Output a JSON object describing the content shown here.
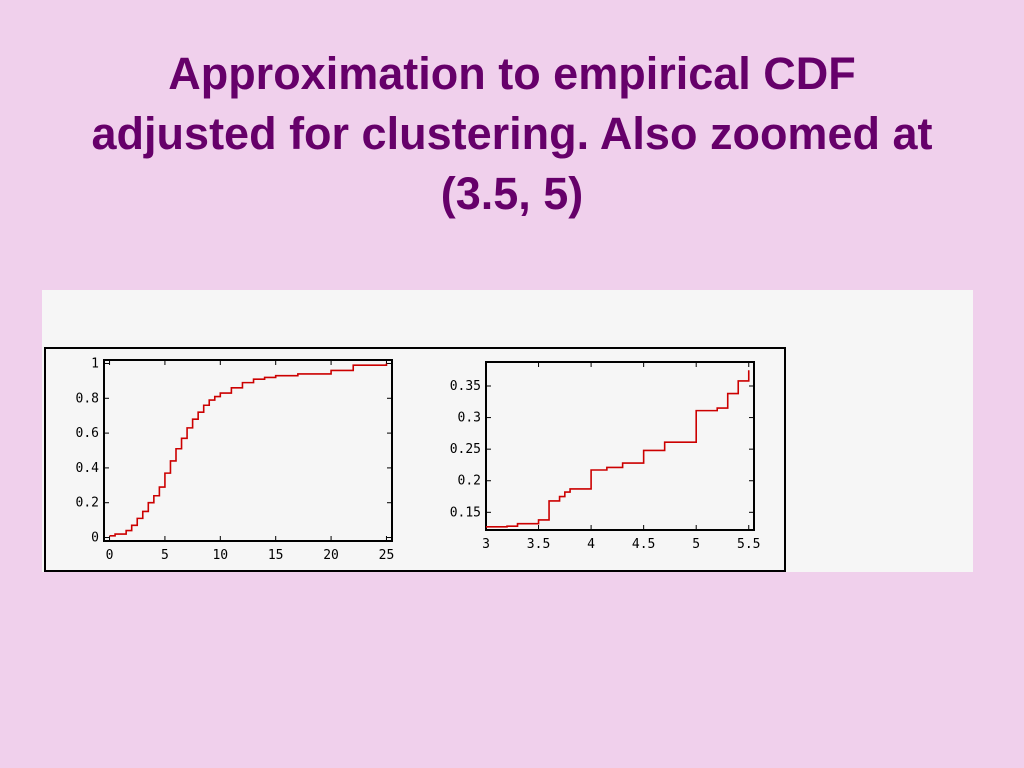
{
  "slide": {
    "title_lines": [
      "Approximation to empirical CDF",
      "adjusted for clustering. Also zoomed at",
      "(3.5, 5)"
    ],
    "background_color": "#f0d0ec",
    "title_color": "#66006a"
  },
  "chart_data": [
    {
      "type": "line",
      "step": true,
      "title": "",
      "xlabel": "",
      "ylabel": "",
      "xlim": [
        -0.5,
        25.5
      ],
      "ylim": [
        -0.02,
        1.02
      ],
      "xticks": [
        0,
        5,
        10,
        15,
        20,
        25
      ],
      "xtick_labels": [
        "0",
        "5",
        "10",
        "15",
        "20",
        "25"
      ],
      "yticks": [
        0,
        0.2,
        0.4,
        0.6,
        0.8,
        1
      ],
      "ytick_labels": [
        "0",
        "0.2",
        "0.4",
        "0.6",
        "0.8",
        "1"
      ],
      "grid": false,
      "line_color": "#cc0000",
      "series": [
        {
          "x": [
            0,
            0.5,
            1.0,
            1.5,
            2.0,
            2.5,
            3.0,
            3.5,
            4.0,
            4.5,
            5.0,
            5.5,
            6.0,
            6.5,
            7.0,
            7.5,
            8.0,
            8.5,
            9.0,
            9.5,
            10.0,
            11.0,
            12.0,
            13.0,
            14.0,
            15.0,
            17.0,
            20.0,
            22.0,
            25.0
          ],
          "y": [
            0.01,
            0.02,
            0.02,
            0.04,
            0.07,
            0.11,
            0.15,
            0.2,
            0.24,
            0.29,
            0.37,
            0.44,
            0.51,
            0.57,
            0.63,
            0.68,
            0.72,
            0.76,
            0.79,
            0.81,
            0.83,
            0.86,
            0.89,
            0.91,
            0.92,
            0.93,
            0.94,
            0.96,
            0.99,
            1.0
          ]
        }
      ]
    },
    {
      "type": "line",
      "step": true,
      "title": "",
      "xlabel": "",
      "ylabel": "",
      "xlim": [
        3,
        5.55
      ],
      "ylim": [
        0.122,
        0.388
      ],
      "xticks": [
        3,
        3.5,
        4,
        4.5,
        5,
        5.5
      ],
      "xtick_labels": [
        "3",
        "3.5",
        "4",
        "4.5",
        "5",
        "5.5"
      ],
      "yticks": [
        0.15,
        0.2,
        0.25,
        0.3,
        0.35
      ],
      "ytick_labels": [
        "0.15",
        "0.2",
        "0.25",
        "0.3",
        "0.35"
      ],
      "grid": false,
      "line_color": "#cc0000",
      "series": [
        {
          "x": [
            3.0,
            3.2,
            3.3,
            3.5,
            3.6,
            3.7,
            3.75,
            3.8,
            4.0,
            4.15,
            4.3,
            4.5,
            4.7,
            5.0,
            5.2,
            5.3,
            5.4,
            5.5
          ],
          "y": [
            0.127,
            0.128,
            0.132,
            0.138,
            0.168,
            0.175,
            0.182,
            0.187,
            0.217,
            0.221,
            0.228,
            0.248,
            0.261,
            0.311,
            0.315,
            0.338,
            0.358,
            0.375
          ]
        }
      ]
    }
  ]
}
